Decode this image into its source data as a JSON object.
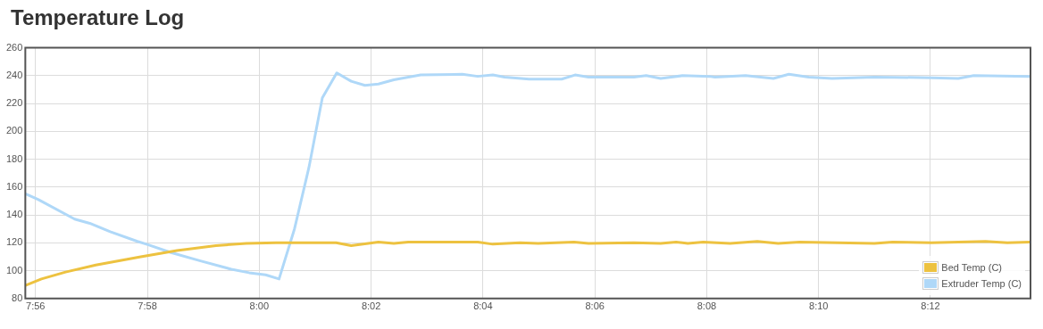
{
  "chart_data": {
    "type": "line",
    "title": "Temperature Log",
    "xlim": [
      7.9303,
      8.2298
    ],
    "xticks": [
      {
        "value": 7.93333,
        "label": "7:56"
      },
      {
        "value": 7.96667,
        "label": "7:58"
      },
      {
        "value": 8,
        "label": "8:00"
      },
      {
        "value": 8.03333,
        "label": "8:02"
      },
      {
        "value": 8.06667,
        "label": "8:04"
      },
      {
        "value": 8.1,
        "label": "8:06"
      },
      {
        "value": 8.13333,
        "label": "8:08"
      },
      {
        "value": 8.16667,
        "label": "8:10"
      },
      {
        "value": 8.2,
        "label": "8:12"
      }
    ],
    "ylim": [
      80,
      260
    ],
    "yticks": [
      80,
      100,
      120,
      140,
      160,
      180,
      200,
      220,
      240,
      260
    ],
    "grid": true,
    "legend": "bottom right",
    "marker": "none",
    "line_style": "solid",
    "series": [
      {
        "name": "Bed Temp (C)",
        "color": "#edc240",
        "x": [
          7.9305,
          7.9351,
          7.9423,
          7.9513,
          7.9647,
          7.9755,
          7.9871,
          7.9961,
          8.005,
          8.0229,
          8.0274,
          8.0355,
          8.0401,
          8.0444,
          8.0651,
          8.0696,
          8.0777,
          8.0831,
          8.0938,
          8.0981,
          8.1116,
          8.1196,
          8.1242,
          8.1277,
          8.1323,
          8.1403,
          8.1484,
          8.1546,
          8.161,
          8.1833,
          8.1887,
          8.2003,
          8.2164,
          8.2229,
          8.2296
        ],
        "values": [
          89.5,
          94,
          99,
          104,
          110,
          114.5,
          118,
          119.5,
          120,
          120,
          118,
          120.5,
          119.5,
          120.5,
          120.5,
          119,
          120,
          119.5,
          120.5,
          119.5,
          120,
          119.5,
          120.5,
          119.5,
          120.5,
          119.5,
          121,
          119.5,
          120.5,
          119.5,
          120.5,
          120,
          121,
          120,
          120.5
        ]
      },
      {
        "name": "Extruder Temp (C)",
        "color": "#afd8f8",
        "x": [
          7.9305,
          7.9342,
          7.945,
          7.9495,
          7.9556,
          7.9637,
          7.9664,
          7.9737,
          7.9825,
          7.9917,
          7.997,
          8.0019,
          8.0059,
          8.0105,
          8.0148,
          8.0188,
          8.0231,
          8.0274,
          8.0315,
          8.0355,
          8.0401,
          8.0481,
          8.0605,
          8.0651,
          8.0696,
          8.0731,
          8.0804,
          8.0901,
          8.0941,
          8.0981,
          8.1116,
          8.1153,
          8.1196,
          8.1261,
          8.1341,
          8.1358,
          8.1449,
          8.1532,
          8.1578,
          8.1637,
          8.1707,
          8.1833,
          8.2003,
          8.2083,
          8.2129,
          8.2296
        ],
        "values": [
          155,
          151,
          137,
          134,
          128,
          121,
          119,
          113,
          107,
          101,
          98.5,
          97,
          94,
          130,
          174,
          224,
          242,
          236,
          233,
          234,
          237,
          240.5,
          241,
          239.5,
          240.5,
          239,
          237.5,
          237.5,
          240.5,
          239,
          239,
          240,
          238,
          240,
          239.5,
          239,
          240,
          238,
          241,
          239,
          238,
          239,
          238.5,
          238,
          240,
          239.5
        ]
      }
    ]
  }
}
